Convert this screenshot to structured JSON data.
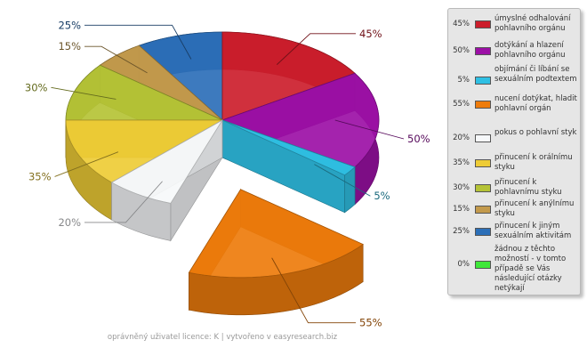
{
  "chart_data": {
    "type": "pie",
    "variant": "3d-exploded",
    "slices": [
      {
        "label": "úmyslné odhalování pohlavního orgánu",
        "value": 45,
        "display": "45%",
        "color": "#cc1e2c"
      },
      {
        "label": "dotýkání a hlazení pohlavního orgánu",
        "value": 50,
        "display": "50%",
        "color": "#9c10a6"
      },
      {
        "label": "objímání či líbání se sexuálním podtextem",
        "value": 5,
        "display": "5%",
        "color": "#2fc0e4"
      },
      {
        "label": "nucení dotýkat, hladit pohlavní orgán",
        "value": 55,
        "display": "55%",
        "color": "#ee7c0c"
      },
      {
        "label": "pokus o pohlavní styk",
        "value": 20,
        "display": "20%",
        "color": "#f6f8fa"
      },
      {
        "label": "přinucení k orálnímu styku",
        "value": 35,
        "display": "35%",
        "color": "#eecc36"
      },
      {
        "label": "přinucení k pohlavnímu styku",
        "value": 30,
        "display": "30%",
        "color": "#b5c336"
      },
      {
        "label": "přinucení k anýlnímu styku",
        "value": 15,
        "display": "15%",
        "color": "#c39a4c"
      },
      {
        "label": "přinucení k jiným sexuálním aktivitám",
        "value": 25,
        "display": "25%",
        "color": "#2c6fb8"
      },
      {
        "label": "žádnou z těchto možností - v tomto případě se Vás následující otázky netýkají",
        "value": 0,
        "display": "0%",
        "color": "#3fe83a"
      }
    ],
    "legend_position": "right"
  },
  "footer": "oprávněný uživatel licence: K | vytvořeno v easyresearch.biz"
}
